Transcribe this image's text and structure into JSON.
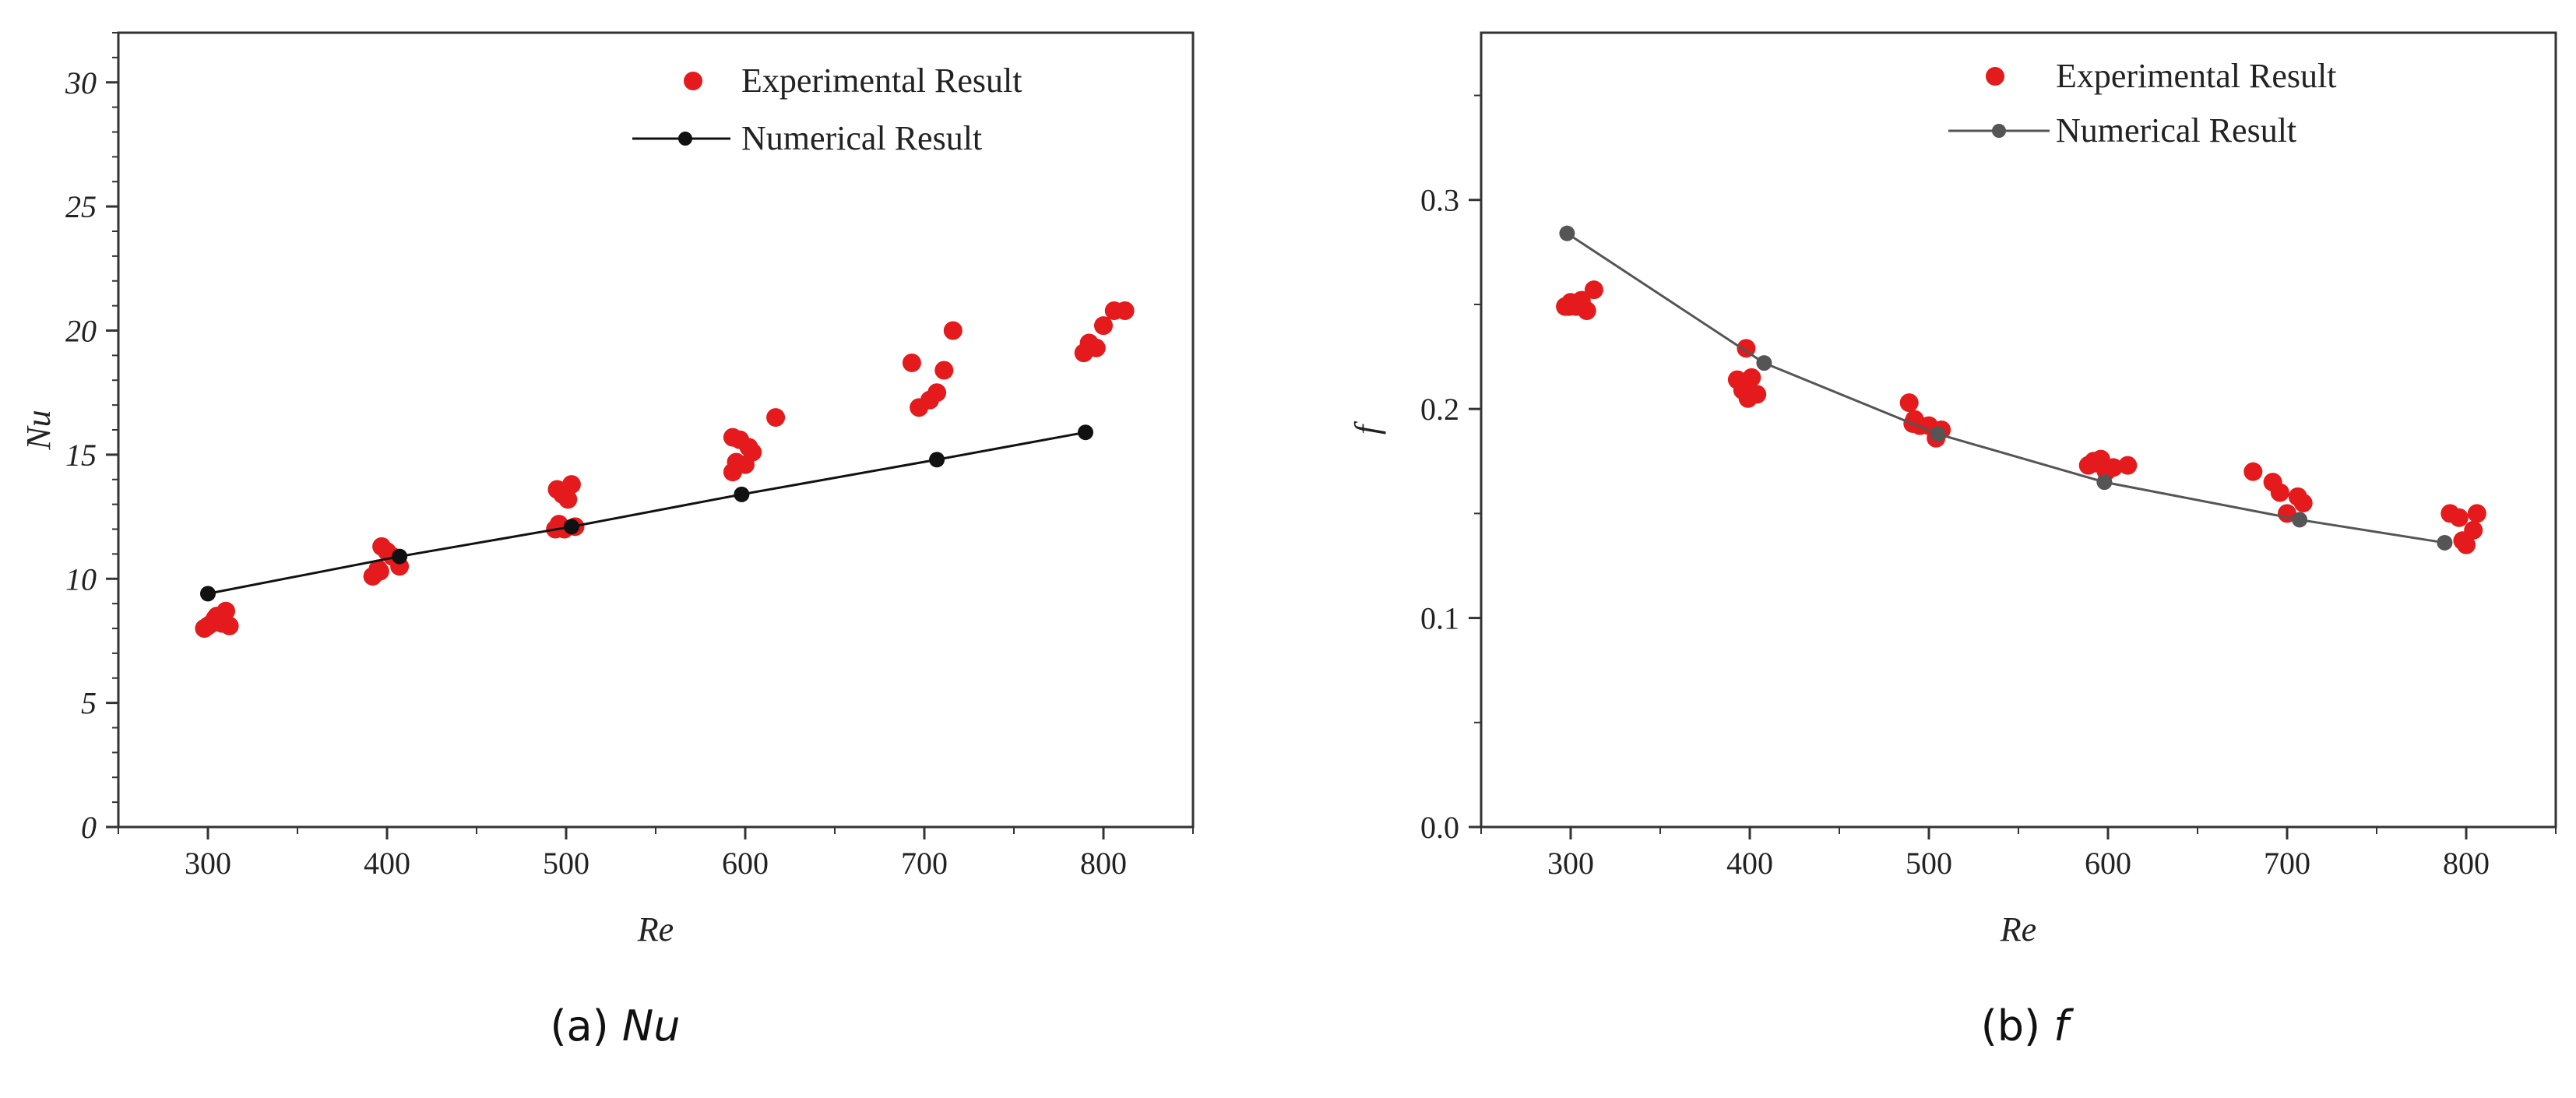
{
  "chart_data": [
    {
      "type": "scatter",
      "panel": "a",
      "caption_prefix": "(a) ",
      "caption_symbol": "Nu",
      "xlabel": "Re",
      "ylabel": "Nu",
      "xlim": [
        250,
        850
      ],
      "ylim": [
        0,
        32
      ],
      "x_ticks": [
        300,
        400,
        500,
        600,
        700,
        800
      ],
      "y_ticks": [
        0,
        5,
        10,
        15,
        20,
        25,
        30
      ],
      "grid": false,
      "legend_position": "top-right",
      "series": [
        {
          "name": "Experimental Result",
          "kind": "points",
          "color": "#e41a1c",
          "x": [
            298,
            302,
            305,
            308,
            310,
            312,
            304,
            300,
            392,
            395,
            397,
            400,
            403,
            407,
            396,
            494,
            496,
            498,
            501,
            503,
            505,
            495,
            499,
            593,
            595,
            597,
            600,
            602,
            604,
            617,
            593,
            693,
            697,
            703,
            707,
            711,
            716,
            789,
            792,
            796,
            800,
            806,
            812
          ],
          "y": [
            8.0,
            8.2,
            8.5,
            8.2,
            8.7,
            8.1,
            8.4,
            8.1,
            10.1,
            10.4,
            11.3,
            11.1,
            10.9,
            10.5,
            10.3,
            12.0,
            12.2,
            13.4,
            13.2,
            13.8,
            12.1,
            13.6,
            12.0,
            14.3,
            14.7,
            15.6,
            14.6,
            15.3,
            15.1,
            16.5,
            15.7,
            18.7,
            16.9,
            17.2,
            17.5,
            18.4,
            20.0,
            19.1,
            19.5,
            19.3,
            20.2,
            20.8,
            20.8
          ]
        },
        {
          "name": "Numerical Result",
          "kind": "line-markers",
          "color": "#111111",
          "x": [
            300,
            407,
            503,
            598,
            707,
            790
          ],
          "y": [
            9.4,
            10.9,
            12.1,
            13.4,
            14.8,
            15.9
          ]
        }
      ]
    },
    {
      "type": "scatter",
      "panel": "b",
      "caption_prefix": "(b) ",
      "caption_symbol": "f",
      "xlabel": "Re",
      "ylabel": "f",
      "xlim": [
        250,
        850
      ],
      "ylim": [
        0,
        0.38
      ],
      "x_ticks": [
        300,
        400,
        500,
        600,
        700,
        800
      ],
      "y_ticks": [
        0.0,
        0.1,
        0.2,
        0.3
      ],
      "y_tick_labels": [
        "0.0",
        "0.1",
        "0.2",
        "0.3"
      ],
      "grid": false,
      "legend_position": "top-right",
      "series": [
        {
          "name": "Experimental Result",
          "kind": "points",
          "color": "#e41a1c",
          "x": [
            297,
            300,
            303,
            306,
            309,
            313,
            299,
            393,
            396,
            398,
            401,
            404,
            399,
            489,
            492,
            495,
            500,
            504,
            507,
            491,
            589,
            592,
            596,
            599,
            603,
            611,
            594,
            681,
            692,
            696,
            700,
            706,
            709,
            791,
            796,
            800,
            804,
            806,
            798
          ],
          "y": [
            0.249,
            0.251,
            0.249,
            0.252,
            0.247,
            0.257,
            0.249,
            0.214,
            0.209,
            0.229,
            0.215,
            0.207,
            0.205,
            0.203,
            0.195,
            0.192,
            0.192,
            0.186,
            0.19,
            0.193,
            0.173,
            0.175,
            0.176,
            0.17,
            0.172,
            0.173,
            0.174,
            0.17,
            0.165,
            0.16,
            0.15,
            0.158,
            0.155,
            0.15,
            0.148,
            0.135,
            0.142,
            0.15,
            0.137
          ]
        },
        {
          "name": "Numerical Result",
          "kind": "line-markers",
          "color": "#555555",
          "x": [
            298,
            408,
            505,
            598,
            707,
            788
          ],
          "y": [
            0.284,
            0.222,
            0.188,
            0.165,
            0.147,
            0.136
          ]
        }
      ]
    }
  ]
}
